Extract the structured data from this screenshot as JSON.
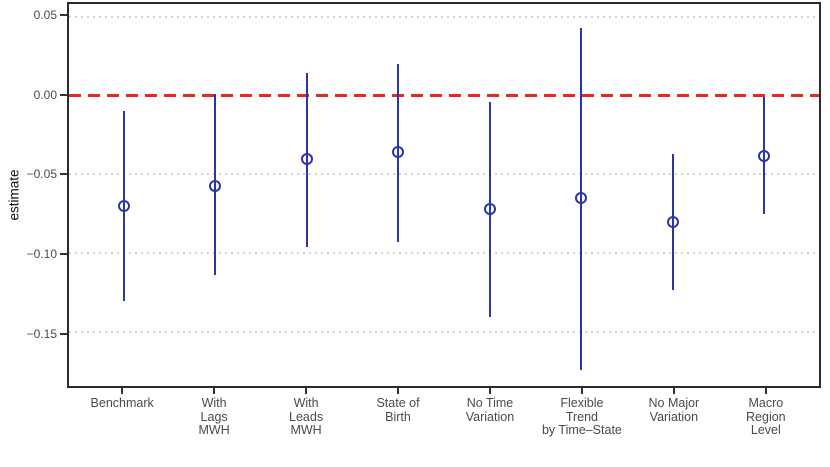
{
  "chart_data": {
    "type": "scatter",
    "subtype": "pointrange-coefficient-plot",
    "title": "",
    "xlabel": "",
    "ylabel": "estimate",
    "ylim": [
      -0.184,
      0.058
    ],
    "grid": "horizontal-dotted",
    "legend_position": "none",
    "reference_line": {
      "y": 0.0,
      "style": "dashed",
      "color": "#F0241D"
    },
    "yticks": [
      {
        "value": 0.05,
        "label": "0.05"
      },
      {
        "value": 0.0,
        "label": "0.00"
      },
      {
        "value": -0.05,
        "label": "−0.05"
      },
      {
        "value": -0.1,
        "label": "−0.10"
      },
      {
        "value": -0.15,
        "label": "−0.15"
      }
    ],
    "points": [
      {
        "category": "Benchmark",
        "label_lines": [
          "Benchmark"
        ],
        "estimate": -0.07,
        "lower": -0.13,
        "upper": -0.01
      },
      {
        "category": "With Lags MWH",
        "label_lines": [
          "With",
          "Lags",
          "MWH"
        ],
        "estimate": -0.057,
        "lower": -0.114,
        "upper": 0.001
      },
      {
        "category": "With Leads MWH",
        "label_lines": [
          "With",
          "Leads",
          "MWH"
        ],
        "estimate": -0.04,
        "lower": -0.096,
        "upper": 0.014
      },
      {
        "category": "State of Birth",
        "label_lines": [
          "State of",
          "Birth"
        ],
        "estimate": -0.036,
        "lower": -0.093,
        "upper": 0.02
      },
      {
        "category": "No Time Variation",
        "label_lines": [
          "No Time",
          "Variation"
        ],
        "estimate": -0.072,
        "lower": -0.14,
        "upper": -0.004
      },
      {
        "category": "Flexible Trend by Time–State",
        "label_lines": [
          "Flexible",
          "Trend",
          "by Time–State"
        ],
        "estimate": -0.065,
        "lower": -0.174,
        "upper": 0.043
      },
      {
        "category": "No Major Variation",
        "label_lines": [
          "No Major",
          "Variation"
        ],
        "estimate": -0.08,
        "lower": -0.123,
        "upper": -0.037
      },
      {
        "category": "Macro Region Level",
        "label_lines": [
          "Macro",
          "Region",
          "Level"
        ],
        "estimate": -0.038,
        "lower": -0.075,
        "upper": -0.001
      }
    ],
    "colors": {
      "point_and_bar": "#2A35A8",
      "zero_line": "#F0241D",
      "gridline": "#D2D2D2",
      "panel_border": "#2B2B2B",
      "axis_text": "#4A4A4A",
      "axis_title": "#111111"
    }
  }
}
